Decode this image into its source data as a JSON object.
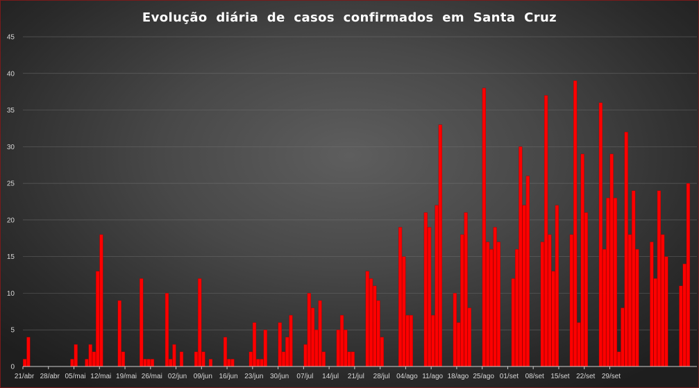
{
  "chart_data": {
    "type": "bar",
    "title": "Evolução diária de casos confirmados em Santa Cruz",
    "xlabel": "",
    "ylabel": "",
    "ylim": [
      0,
      45
    ],
    "yticks": [
      0,
      5,
      10,
      15,
      20,
      25,
      30,
      35,
      40,
      45
    ],
    "grid": true,
    "legend": "none",
    "bar_color": "#ff0000",
    "xtick_labels": [
      "21/abr",
      "28/abr",
      "05/mai",
      "12/mai",
      "19/mai",
      "26/mai",
      "02/jun",
      "09/jun",
      "16/jun",
      "23/jun",
      "30/jun",
      "07/jul",
      "14/jul",
      "21/jul",
      "28/jul",
      "04/ago",
      "11/ago",
      "18/ago",
      "25/ago",
      "01/set",
      "08/set",
      "15/set",
      "22/set",
      "29/set"
    ],
    "values": [
      1,
      4,
      0,
      0,
      0,
      0,
      0,
      0,
      0,
      0,
      0,
      0,
      0,
      1,
      3,
      0,
      0,
      1,
      3,
      2,
      13,
      18,
      0,
      0,
      0,
      0,
      9,
      2,
      0,
      0,
      0,
      0,
      12,
      1,
      1,
      1,
      0,
      0,
      0,
      10,
      1,
      3,
      0,
      2,
      0,
      0,
      0,
      2,
      12,
      2,
      0,
      1,
      0,
      0,
      0,
      4,
      1,
      1,
      0,
      0,
      0,
      0,
      2,
      6,
      1,
      1,
      5,
      0,
      0,
      0,
      6,
      2,
      4,
      7,
      0,
      0,
      0,
      3,
      10,
      8,
      5,
      9,
      2,
      0,
      0,
      0,
      5,
      7,
      5,
      2,
      2,
      0,
      0,
      0,
      13,
      12,
      11,
      9,
      4,
      0,
      0,
      0,
      0,
      19,
      15,
      7,
      7,
      0,
      0,
      0,
      21,
      19,
      7,
      22,
      33,
      0,
      0,
      0,
      10,
      6,
      18,
      21,
      8,
      0,
      0,
      0,
      38,
      17,
      16,
      19,
      17,
      0,
      0,
      0,
      12,
      16,
      30,
      22,
      26,
      0,
      0,
      0,
      17,
      37,
      18,
      13,
      22,
      0,
      0,
      0,
      18,
      39,
      6,
      29,
      21,
      0,
      0,
      0,
      36,
      16,
      23,
      29,
      23,
      2,
      8,
      32,
      18,
      24,
      16,
      0,
      0,
      0,
      17,
      12,
      24,
      18,
      15,
      0,
      0,
      0,
      11,
      14,
      25
    ]
  }
}
